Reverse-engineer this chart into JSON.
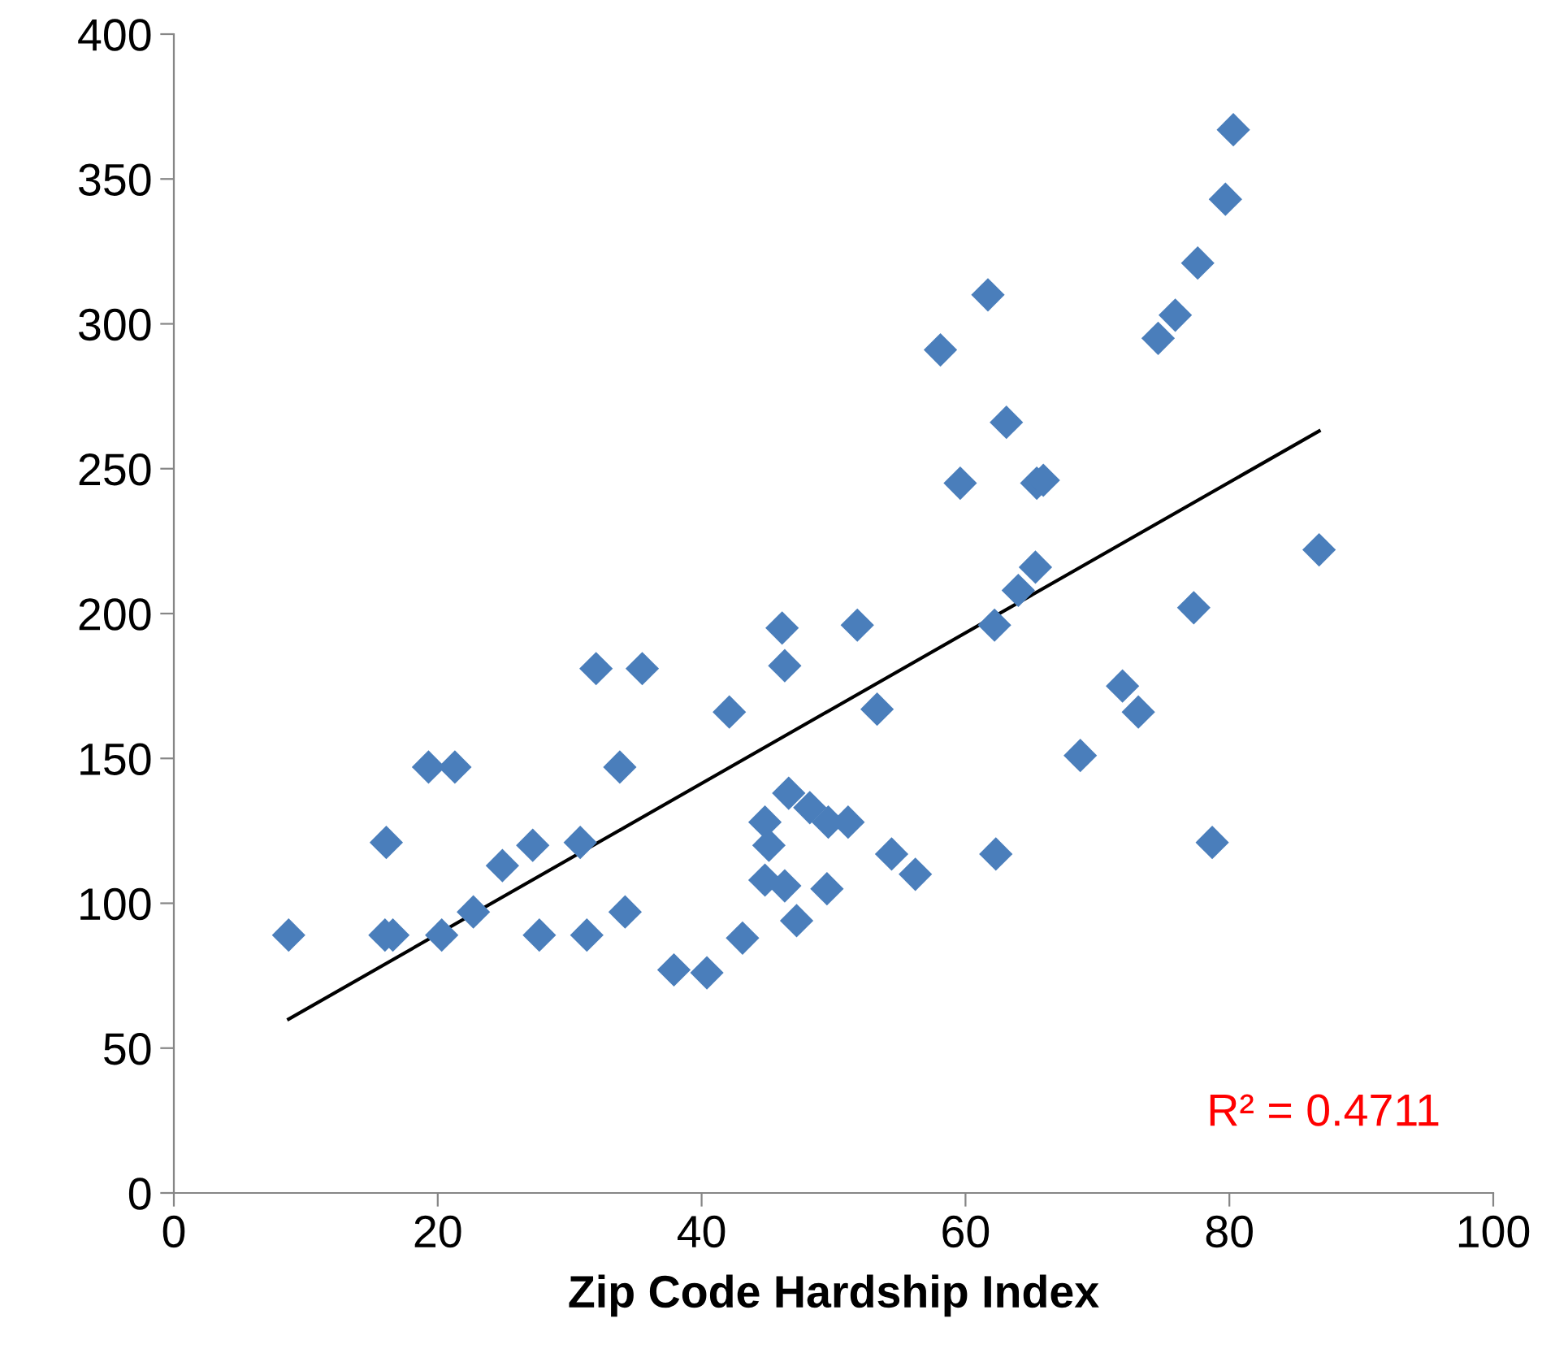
{
  "chart_data": {
    "type": "scatter",
    "xlabel": "Zip Code Hardship Index",
    "xlim": [
      0,
      100
    ],
    "xticks": [
      0,
      20,
      40,
      60,
      80,
      100
    ],
    "ylim": [
      0,
      400
    ],
    "yticks": [
      0,
      50,
      100,
      150,
      200,
      250,
      300,
      350,
      400
    ],
    "grid": false,
    "legend": false,
    "marker": "diamond",
    "annotations": [
      "R² = 0.4711"
    ],
    "series": [
      {
        "color": "#4a7ebb",
        "x": [
          8.7,
          16.1,
          16.0,
          16.6,
          19.3,
          21.3,
          20.3,
          22.7,
          24.9,
          27.2,
          27.7,
          30.8,
          31.3,
          32.0,
          35.5,
          33.8,
          34.2,
          37.9,
          46.1,
          51.8,
          46.3,
          42.1,
          53.3,
          62.2,
          64.0,
          68.7,
          46.6,
          44.8,
          48.2,
          49.6,
          51.1,
          45.1,
          54.4,
          56.2,
          62.3,
          44.8,
          46.3,
          49.5,
          47.2,
          43.1,
          40.4,
          80.3,
          79.7,
          77.6,
          75.9,
          74.6,
          61.7,
          58.1,
          63.1,
          59.6,
          65.4,
          65.9,
          86.8,
          65.3,
          77.3,
          71.9,
          73.1,
          78.7
        ],
        "values": [
          89,
          121,
          89,
          89,
          147,
          147,
          89,
          97,
          113,
          120,
          89,
          121,
          89,
          181,
          181,
          147,
          97,
          77,
          195,
          196,
          182,
          166,
          167,
          196,
          208,
          151,
          138,
          128,
          133,
          128,
          128,
          120,
          117,
          110,
          117,
          108,
          106,
          105,
          94,
          88,
          76,
          367,
          343,
          321,
          303,
          295,
          310,
          291,
          266,
          245,
          245,
          246,
          222,
          216,
          202,
          175,
          166,
          121
        ]
      },
      {
        "type": "line",
        "color": "#000000",
        "marker": "none",
        "line_style": "solid",
        "x": [
          8.7,
          86.8
        ],
        "values": [
          60,
          263
        ]
      }
    ]
  }
}
